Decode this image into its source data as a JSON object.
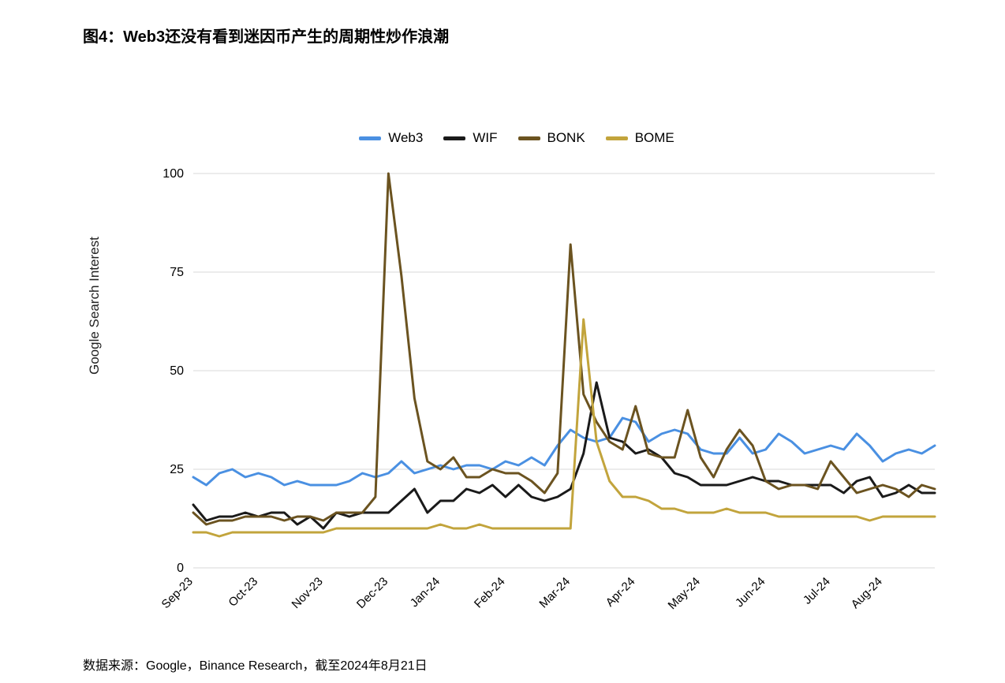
{
  "title": "图4：Web3还没有看到迷因币产生的周期性炒作浪潮",
  "footer": "数据来源：Google，Binance Research，截至2024年8月21日",
  "chart": {
    "type": "line",
    "background_color": "#ffffff",
    "grid_color": "#d9d9d9",
    "y_axis_title": "Google Search Interest",
    "ylim": [
      0,
      100
    ],
    "yticks": [
      0,
      25,
      50,
      75,
      100
    ],
    "x_labels": [
      "Sep-23",
      "Oct-23",
      "Nov-23",
      "Dec-23",
      "Jan-24",
      "Feb-24",
      "Mar-24",
      "Apr-24",
      "May-24",
      "Jun-24",
      "Jul-24",
      "Aug-24"
    ],
    "x_label_rotation": -45,
    "line_width": 3,
    "title_fontsize": 20,
    "tick_fontsize": 16,
    "legend_fontsize": 17,
    "series": [
      {
        "name": "Web3",
        "color": "#4a90e2",
        "values": [
          23,
          21,
          24,
          25,
          23,
          24,
          23,
          21,
          22,
          21,
          21,
          21,
          22,
          24,
          23,
          24,
          27,
          24,
          25,
          26,
          25,
          26,
          26,
          25,
          27,
          26,
          28,
          26,
          31,
          35,
          33,
          32,
          33,
          38,
          37,
          32,
          34,
          35,
          34,
          30,
          29,
          29,
          33,
          29,
          30,
          34,
          32,
          29,
          30,
          31,
          30,
          34,
          31,
          27,
          29,
          30,
          29,
          31
        ]
      },
      {
        "name": "WIF",
        "color": "#1a1a1a",
        "values": [
          16,
          12,
          13,
          13,
          14,
          13,
          14,
          14,
          11,
          13,
          10,
          14,
          13,
          14,
          14,
          14,
          17,
          20,
          14,
          17,
          17,
          20,
          19,
          21,
          18,
          21,
          18,
          17,
          18,
          20,
          29,
          47,
          33,
          32,
          29,
          30,
          28,
          24,
          23,
          21,
          21,
          21,
          22,
          23,
          22,
          22,
          21,
          21,
          21,
          21,
          19,
          22,
          23,
          18,
          19,
          21,
          19,
          19
        ]
      },
      {
        "name": "BONK",
        "color": "#6b5320",
        "values": [
          14,
          11,
          12,
          12,
          13,
          13,
          13,
          12,
          13,
          13,
          12,
          14,
          14,
          14,
          18,
          100,
          74,
          43,
          27,
          25,
          28,
          23,
          23,
          25,
          24,
          24,
          22,
          19,
          24,
          82,
          44,
          37,
          32,
          30,
          41,
          29,
          28,
          28,
          40,
          28,
          23,
          30,
          35,
          31,
          22,
          20,
          21,
          21,
          20,
          27,
          23,
          19,
          20,
          21,
          20,
          18,
          21,
          20
        ]
      },
      {
        "name": "BOME",
        "color": "#c2a43c",
        "values": [
          9,
          9,
          8,
          9,
          9,
          9,
          9,
          9,
          9,
          9,
          9,
          10,
          10,
          10,
          10,
          10,
          10,
          10,
          10,
          11,
          10,
          10,
          11,
          10,
          10,
          10,
          10,
          10,
          10,
          10,
          63,
          32,
          22,
          18,
          18,
          17,
          15,
          15,
          14,
          14,
          14,
          15,
          14,
          14,
          14,
          13,
          13,
          13,
          13,
          13,
          13,
          13,
          12,
          13,
          13,
          13,
          13,
          13
        ]
      }
    ]
  }
}
